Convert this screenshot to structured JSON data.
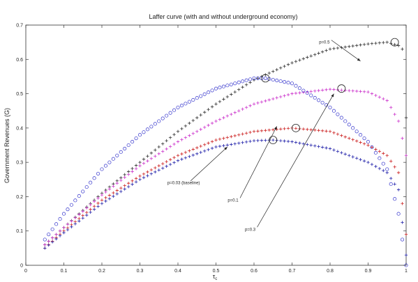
{
  "chart_data": {
    "type": "scatter",
    "title": "Laffer curve (with and without underground economy)",
    "xlabel": "τ",
    "xlabel_sub": "c",
    "ylabel": "Government Revenues (G)",
    "xlim": [
      0,
      1
    ],
    "ylim": [
      0,
      0.7
    ],
    "xticks": [
      "0",
      "0.1",
      "0.2",
      "0.3",
      "0.4",
      "0.5",
      "0.6",
      "0.7",
      "0.8",
      "0.9",
      "1"
    ],
    "yticks": [
      "0",
      "0.1",
      "0.2",
      "0.3",
      "0.4",
      "0.5",
      "0.6",
      "0.7"
    ],
    "grid": false,
    "legend": "none",
    "series": [
      {
        "name": "p=0.5",
        "marker": "plus",
        "color": "#333333",
        "peak": [
          0.97,
          0.65
        ],
        "curve": [
          [
            0.05,
            0.06
          ],
          [
            0.1,
            0.11
          ],
          [
            0.2,
            0.21
          ],
          [
            0.3,
            0.3
          ],
          [
            0.4,
            0.39
          ],
          [
            0.5,
            0.47
          ],
          [
            0.6,
            0.54
          ],
          [
            0.7,
            0.59
          ],
          [
            0.8,
            0.63
          ],
          [
            0.9,
            0.645
          ],
          [
            0.95,
            0.65
          ],
          [
            0.98,
            0.64
          ],
          [
            0.99,
            0.63
          ],
          [
            1.0,
            0.43
          ]
        ]
      },
      {
        "name": "p=0.3",
        "marker": "plus",
        "color": "#cc33cc",
        "peak": [
          0.83,
          0.515
        ],
        "curve": [
          [
            0.05,
            0.06
          ],
          [
            0.1,
            0.11
          ],
          [
            0.2,
            0.205
          ],
          [
            0.3,
            0.29
          ],
          [
            0.4,
            0.36
          ],
          [
            0.5,
            0.42
          ],
          [
            0.6,
            0.47
          ],
          [
            0.7,
            0.5
          ],
          [
            0.8,
            0.513
          ],
          [
            0.9,
            0.505
          ],
          [
            0.95,
            0.48
          ],
          [
            0.98,
            0.42
          ],
          [
            1.0,
            0.32
          ]
        ]
      },
      {
        "name": "p=0.1",
        "marker": "plus",
        "color": "#cc2222",
        "peak": [
          0.71,
          0.4
        ],
        "curve": [
          [
            0.05,
            0.05
          ],
          [
            0.1,
            0.1
          ],
          [
            0.2,
            0.19
          ],
          [
            0.3,
            0.26
          ],
          [
            0.4,
            0.32
          ],
          [
            0.5,
            0.365
          ],
          [
            0.6,
            0.39
          ],
          [
            0.7,
            0.4
          ],
          [
            0.8,
            0.39
          ],
          [
            0.9,
            0.35
          ],
          [
            0.95,
            0.32
          ],
          [
            0.98,
            0.27
          ],
          [
            1.0,
            0.09
          ]
        ]
      },
      {
        "name": "p=0.03 (baseline)",
        "marker": "plus",
        "color": "#2222aa",
        "peak": [
          0.65,
          0.365
        ],
        "curve": [
          [
            0.05,
            0.05
          ],
          [
            0.1,
            0.095
          ],
          [
            0.2,
            0.18
          ],
          [
            0.3,
            0.25
          ],
          [
            0.4,
            0.305
          ],
          [
            0.5,
            0.345
          ],
          [
            0.6,
            0.363
          ],
          [
            0.65,
            0.365
          ],
          [
            0.7,
            0.36
          ],
          [
            0.8,
            0.34
          ],
          [
            0.9,
            0.3
          ],
          [
            0.95,
            0.27
          ],
          [
            0.98,
            0.22
          ],
          [
            1.0,
            0.03
          ]
        ]
      },
      {
        "name": "",
        "marker": "circle",
        "color": "#3333cc",
        "peak": [
          0.63,
          0.545
        ],
        "curve": [
          [
            0.05,
            0.075
          ],
          [
            0.1,
            0.15
          ],
          [
            0.2,
            0.28
          ],
          [
            0.3,
            0.38
          ],
          [
            0.4,
            0.46
          ],
          [
            0.5,
            0.515
          ],
          [
            0.6,
            0.545
          ],
          [
            0.63,
            0.545
          ],
          [
            0.7,
            0.53
          ],
          [
            0.8,
            0.46
          ],
          [
            0.9,
            0.36
          ],
          [
            0.95,
            0.28
          ],
          [
            0.98,
            0.15
          ],
          [
            1.0,
            0.0
          ]
        ]
      }
    ],
    "annotations": [
      {
        "text": "p=0.5",
        "point": [
          0.88,
          0.595
        ],
        "label": [
          0.785,
          0.65
        ]
      },
      {
        "text": "p=0.03 (baseline)",
        "point": [
          0.53,
          0.345
        ],
        "label": [
          0.415,
          0.24
        ]
      },
      {
        "text": "p=0.1",
        "point": [
          0.66,
          0.405
        ],
        "label": [
          0.545,
          0.19
        ]
      },
      {
        "text": "p=0.3",
        "point": [
          0.81,
          0.5
        ],
        "label": [
          0.59,
          0.105
        ]
      }
    ]
  }
}
